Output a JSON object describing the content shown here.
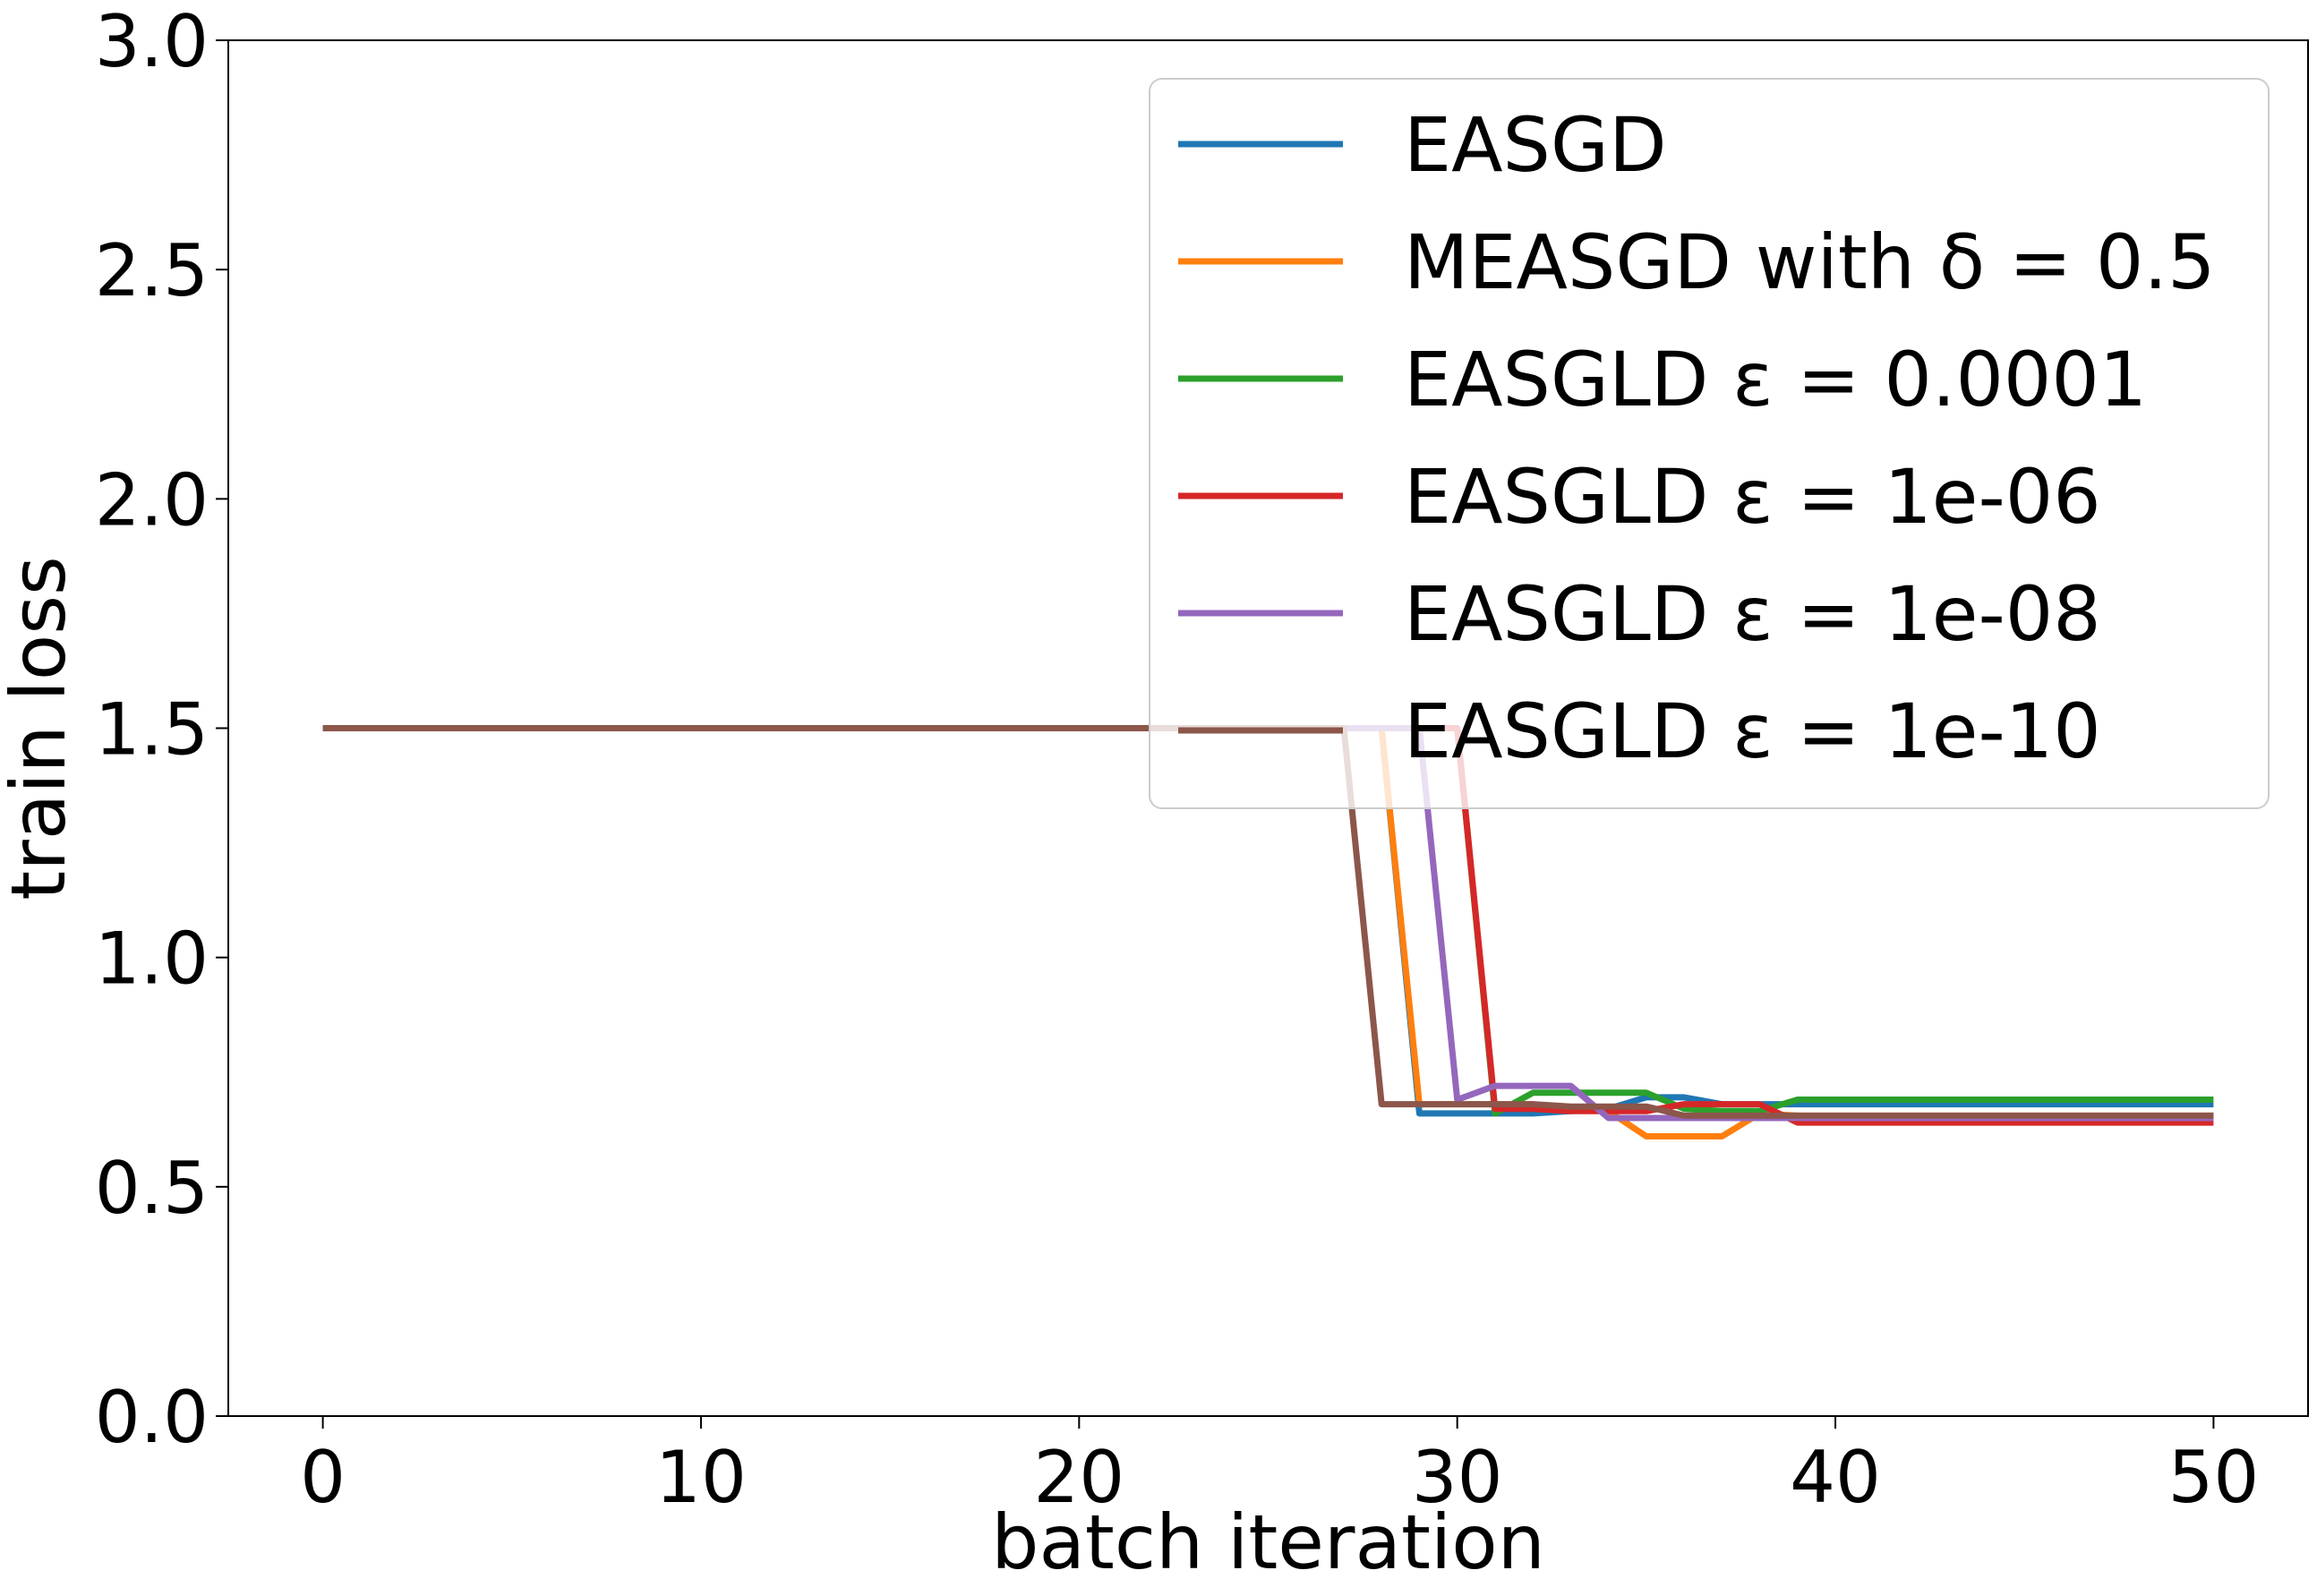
{
  "chart_data": {
    "type": "line",
    "title": "",
    "xlabel": "batch iteration",
    "ylabel": "train loss",
    "xlim": [
      -2.5,
      52.5
    ],
    "ylim": [
      0.0,
      3.0
    ],
    "xticks": [
      0,
      10,
      20,
      30,
      40,
      50
    ],
    "xtick_labels": [
      "0",
      "10",
      "20",
      "30",
      "40",
      "50"
    ],
    "yticks": [
      0.0,
      0.5,
      1.0,
      1.5,
      2.0,
      2.5,
      3.0
    ],
    "ytick_labels": [
      "0.0",
      "0.5",
      "1.0",
      "1.5",
      "2.0",
      "2.5",
      "3.0"
    ],
    "grid": false,
    "legend_position": "top-right",
    "x": [
      0,
      1,
      2,
      3,
      4,
      5,
      6,
      7,
      8,
      9,
      10,
      11,
      12,
      13,
      14,
      15,
      16,
      17,
      18,
      19,
      20,
      21,
      22,
      23,
      24,
      25,
      26,
      27,
      28,
      29,
      30,
      31,
      32,
      33,
      34,
      35,
      36,
      37,
      38,
      39,
      40,
      41,
      42,
      43,
      44,
      45,
      46,
      47,
      48,
      49,
      50
    ],
    "series": [
      {
        "name": "EASGD",
        "color": "#1f77b4",
        "values": [
          1.5,
          1.5,
          1.5,
          1.5,
          1.5,
          1.5,
          1.5,
          1.5,
          1.5,
          1.5,
          1.5,
          1.5,
          1.5,
          1.5,
          1.5,
          1.5,
          1.5,
          1.5,
          1.5,
          1.5,
          1.5,
          1.5,
          1.5,
          1.5,
          1.5,
          1.5,
          1.5,
          1.5,
          1.5,
          0.66,
          0.66,
          0.66,
          0.66,
          0.665,
          0.67,
          0.695,
          0.695,
          0.68,
          0.68,
          0.68,
          0.68,
          0.68,
          0.68,
          0.68,
          0.68,
          0.68,
          0.68,
          0.68,
          0.68,
          0.68,
          0.68
        ]
      },
      {
        "name": "MEASGD with δ = 0.5",
        "color": "#ff7f0e",
        "values": [
          1.5,
          1.5,
          1.5,
          1.5,
          1.5,
          1.5,
          1.5,
          1.5,
          1.5,
          1.5,
          1.5,
          1.5,
          1.5,
          1.5,
          1.5,
          1.5,
          1.5,
          1.5,
          1.5,
          1.5,
          1.5,
          1.5,
          1.5,
          1.5,
          1.5,
          1.5,
          1.5,
          1.5,
          1.5,
          0.68,
          0.68,
          0.68,
          0.68,
          0.67,
          0.665,
          0.61,
          0.61,
          0.61,
          0.66,
          0.655,
          0.655,
          0.655,
          0.655,
          0.655,
          0.655,
          0.655,
          0.655,
          0.655,
          0.655,
          0.655,
          0.655
        ]
      },
      {
        "name": "EASGLD ε = 0.0001",
        "color": "#2ca02c",
        "values": [
          1.5,
          1.5,
          1.5,
          1.5,
          1.5,
          1.5,
          1.5,
          1.5,
          1.5,
          1.5,
          1.5,
          1.5,
          1.5,
          1.5,
          1.5,
          1.5,
          1.5,
          1.5,
          1.5,
          1.5,
          1.5,
          1.5,
          1.5,
          1.5,
          1.5,
          1.5,
          1.5,
          1.5,
          1.5,
          1.5,
          1.5,
          0.66,
          0.705,
          0.705,
          0.705,
          0.705,
          0.67,
          0.665,
          0.665,
          0.69,
          0.69,
          0.69,
          0.69,
          0.69,
          0.69,
          0.69,
          0.69,
          0.69,
          0.69,
          0.69,
          0.69
        ]
      },
      {
        "name": "EASGLD ε = 1e-06",
        "color": "#d62728",
        "values": [
          1.5,
          1.5,
          1.5,
          1.5,
          1.5,
          1.5,
          1.5,
          1.5,
          1.5,
          1.5,
          1.5,
          1.5,
          1.5,
          1.5,
          1.5,
          1.5,
          1.5,
          1.5,
          1.5,
          1.5,
          1.5,
          1.5,
          1.5,
          1.5,
          1.5,
          1.5,
          1.5,
          1.5,
          1.5,
          1.5,
          1.5,
          0.67,
          0.67,
          0.665,
          0.665,
          0.665,
          0.68,
          0.68,
          0.68,
          0.64,
          0.64,
          0.64,
          0.64,
          0.64,
          0.64,
          0.64,
          0.64,
          0.64,
          0.64,
          0.64,
          0.64
        ]
      },
      {
        "name": "EASGLD ε = 1e-08",
        "color": "#9467bd",
        "values": [
          1.5,
          1.5,
          1.5,
          1.5,
          1.5,
          1.5,
          1.5,
          1.5,
          1.5,
          1.5,
          1.5,
          1.5,
          1.5,
          1.5,
          1.5,
          1.5,
          1.5,
          1.5,
          1.5,
          1.5,
          1.5,
          1.5,
          1.5,
          1.5,
          1.5,
          1.5,
          1.5,
          1.5,
          1.5,
          1.5,
          0.69,
          0.72,
          0.72,
          0.72,
          0.65,
          0.65,
          0.65,
          0.65,
          0.65,
          0.65,
          0.65,
          0.65,
          0.65,
          0.65,
          0.65,
          0.65,
          0.65,
          0.65,
          0.65,
          0.65,
          0.65
        ]
      },
      {
        "name": "EASGLD ε = 1e-10",
        "color": "#8c564b",
        "values": [
          1.5,
          1.5,
          1.5,
          1.5,
          1.5,
          1.5,
          1.5,
          1.5,
          1.5,
          1.5,
          1.5,
          1.5,
          1.5,
          1.5,
          1.5,
          1.5,
          1.5,
          1.5,
          1.5,
          1.5,
          1.5,
          1.5,
          1.5,
          1.5,
          1.5,
          1.5,
          1.5,
          1.5,
          0.68,
          0.68,
          0.68,
          0.68,
          0.68,
          0.675,
          0.675,
          0.675,
          0.655,
          0.655,
          0.655,
          0.655,
          0.655,
          0.655,
          0.655,
          0.655,
          0.655,
          0.655,
          0.655,
          0.655,
          0.655,
          0.655,
          0.655
        ]
      }
    ]
  }
}
